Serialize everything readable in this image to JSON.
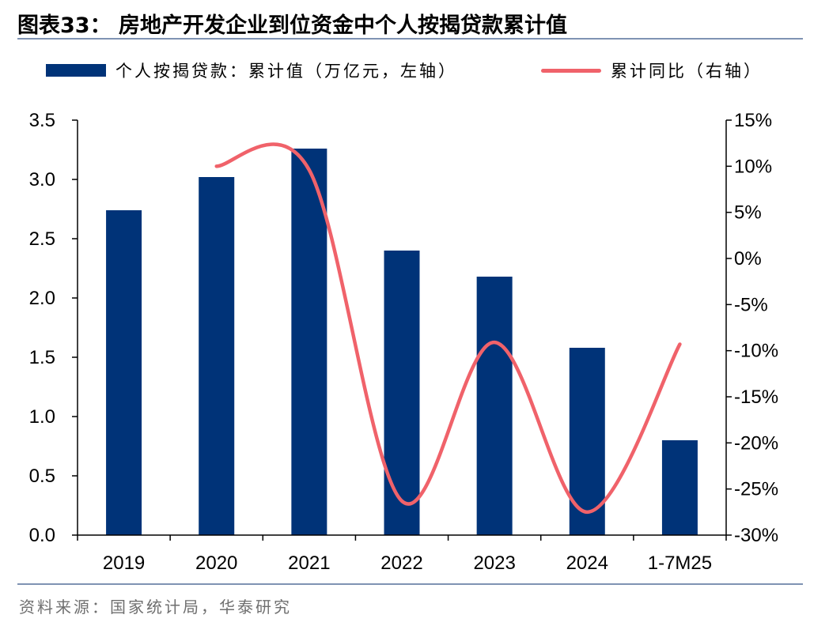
{
  "title": "图表33：  房地产开发企业到位资金中个人按揭贷款累计值",
  "source": "资料来源：国家统计局，华泰研究",
  "colors": {
    "bar": "#003378",
    "line": "#f0626a"
  },
  "chart_data": {
    "type": "bar",
    "categories": [
      "2019",
      "2020",
      "2021",
      "2022",
      "2023",
      "2024",
      "1-7M25"
    ],
    "series": [
      {
        "name": "个人按揭贷款：累计值（万亿元，左轴）",
        "type": "bar",
        "axis": "left",
        "values": [
          2.74,
          3.02,
          3.26,
          2.4,
          2.18,
          1.58,
          0.8
        ]
      },
      {
        "name": "累计同比（右轴）",
        "type": "line",
        "axis": "right",
        "values": [
          null,
          10.0,
          9.6,
          -26.3,
          -9.1,
          -27.5,
          -9.3
        ]
      }
    ],
    "y_left": {
      "lim": [
        0,
        3.5
      ],
      "ticks": [
        "0.0",
        "0.5",
        "1.0",
        "1.5",
        "2.0",
        "2.5",
        "3.0",
        "3.5"
      ]
    },
    "y_right": {
      "lim": [
        -30,
        15
      ],
      "ticks": [
        "-30%",
        "-25%",
        "-20%",
        "-15%",
        "-10%",
        "-5%",
        "0%",
        "5%",
        "10%",
        "15%"
      ]
    },
    "grid": false,
    "legend": "top"
  }
}
